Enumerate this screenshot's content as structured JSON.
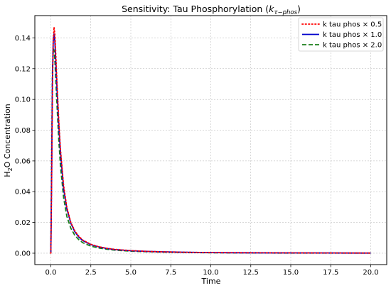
{
  "chart_data": {
    "type": "line",
    "title": {
      "main": "Sensitivity: Tau Phosphorylation (",
      "math_k": "k",
      "math_sub": "τ−phos",
      "close": ")"
    },
    "xlabel": "Time",
    "ylabel": {
      "h": "H",
      "sub": "2",
      "o": "O",
      "rest": " Concentration"
    },
    "xlim": [
      -1.0,
      21.0
    ],
    "ylim": [
      -0.0074,
      0.1545
    ],
    "xticks": [
      0.0,
      2.5,
      5.0,
      7.5,
      10.0,
      12.5,
      15.0,
      17.5,
      20.0
    ],
    "xtick_labels": [
      "0.0",
      "2.5",
      "5.0",
      "7.5",
      "10.0",
      "12.5",
      "15.0",
      "17.5",
      "20.0"
    ],
    "yticks": [
      0.0,
      0.02,
      0.04,
      0.06,
      0.08,
      0.1,
      0.12,
      0.14
    ],
    "ytick_labels": [
      "0.00",
      "0.02",
      "0.04",
      "0.06",
      "0.08",
      "0.10",
      "0.12",
      "0.14"
    ],
    "grid": true,
    "legend_position": "top-right",
    "series": [
      {
        "name": "k tau phos × 0.5",
        "color": "#ff0000",
        "style": "dotted",
        "x": [
          0,
          0.05,
          0.1,
          0.15,
          0.2,
          0.25,
          0.3,
          0.4,
          0.5,
          0.6,
          0.8,
          1.0,
          1.25,
          1.5,
          1.75,
          2.0,
          2.5,
          3.0,
          3.5,
          4.0,
          5.0,
          6.0,
          7.0,
          8.0,
          10.0,
          12.0,
          15.0,
          20.0
        ],
        "y": [
          0.0,
          0.045,
          0.105,
          0.138,
          0.147,
          0.143,
          0.132,
          0.108,
          0.086,
          0.068,
          0.044,
          0.03,
          0.02,
          0.0145,
          0.011,
          0.0085,
          0.0058,
          0.0042,
          0.0032,
          0.0025,
          0.0017,
          0.0012,
          0.0009,
          0.0007,
          0.0004,
          0.0003,
          0.0002,
          0.0001
        ]
      },
      {
        "name": "k tau phos × 1.0",
        "color": "#0000cc",
        "style": "solid",
        "x": [
          0,
          0.05,
          0.1,
          0.15,
          0.2,
          0.25,
          0.3,
          0.4,
          0.5,
          0.6,
          0.8,
          1.0,
          1.25,
          1.5,
          1.75,
          2.0,
          2.5,
          3.0,
          3.5,
          4.0,
          5.0,
          6.0,
          7.0,
          8.0,
          10.0,
          12.0,
          15.0,
          20.0
        ],
        "y": [
          0.0,
          0.05,
          0.112,
          0.138,
          0.1425,
          0.138,
          0.127,
          0.104,
          0.083,
          0.066,
          0.042,
          0.029,
          0.0195,
          0.014,
          0.0105,
          0.0082,
          0.0056,
          0.0041,
          0.0031,
          0.0024,
          0.0016,
          0.0012,
          0.0009,
          0.0007,
          0.0004,
          0.0003,
          0.0002,
          0.0001
        ]
      },
      {
        "name": "k tau phos × 2.0",
        "color": "#1a7f1a",
        "style": "dashed",
        "x": [
          0,
          0.05,
          0.1,
          0.15,
          0.2,
          0.25,
          0.3,
          0.4,
          0.5,
          0.6,
          0.8,
          1.0,
          1.25,
          1.5,
          1.75,
          2.0,
          2.5,
          3.0,
          3.5,
          4.0,
          5.0,
          6.0,
          7.0,
          8.0,
          10.0,
          12.0,
          15.0,
          20.0
        ],
        "y": [
          0.0,
          0.06,
          0.118,
          0.133,
          0.132,
          0.126,
          0.115,
          0.093,
          0.073,
          0.057,
          0.036,
          0.024,
          0.0162,
          0.0116,
          0.0088,
          0.0068,
          0.0046,
          0.0034,
          0.0026,
          0.002,
          0.0013,
          0.001,
          0.0007,
          0.0005,
          0.0003,
          0.0002,
          0.0001,
          0.0001
        ]
      }
    ]
  }
}
